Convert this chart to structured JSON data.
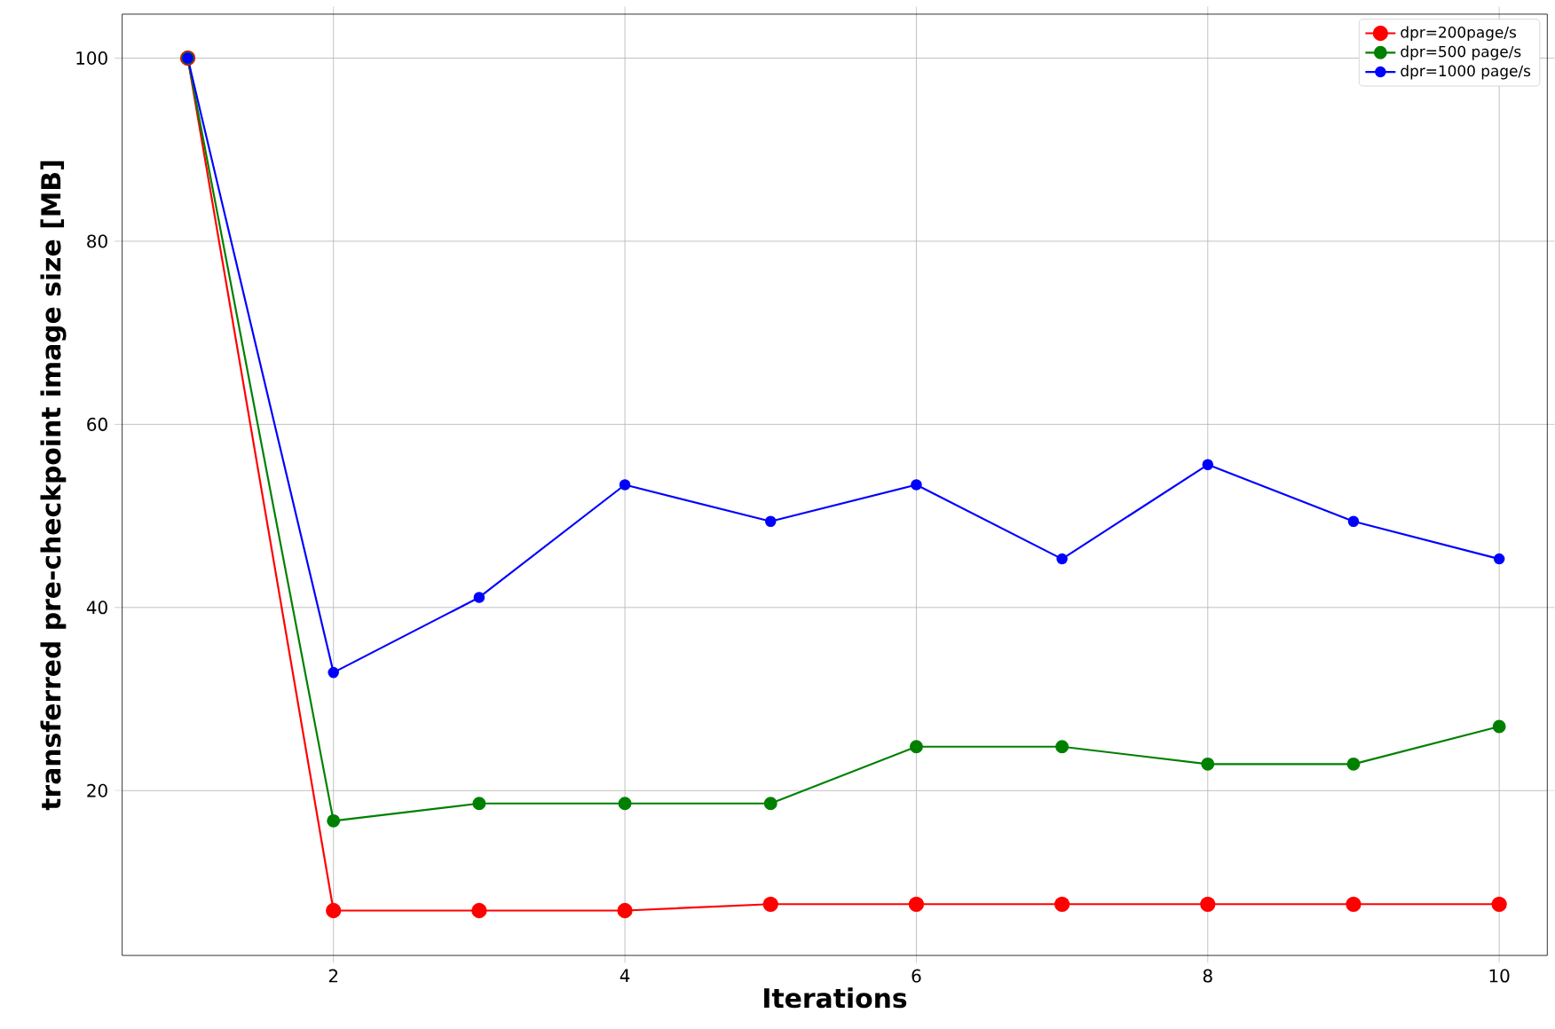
{
  "chart_data": {
    "type": "line",
    "xlabel": "Iterations",
    "ylabel": "transferred pre-checkpoint image size [MB]",
    "x": [
      1,
      2,
      3,
      4,
      5,
      6,
      7,
      8,
      9,
      10
    ],
    "series": [
      {
        "name": "dpr=200page/s",
        "color": "#ff0000",
        "values": [
          100,
          6.9,
          6.9,
          6.9,
          7.6,
          7.6,
          7.6,
          7.6,
          7.6,
          7.6
        ]
      },
      {
        "name": "dpr=500 page/s",
        "color": "#008000",
        "values": [
          100,
          16.7,
          18.6,
          18.6,
          18.6,
          24.8,
          24.8,
          22.9,
          22.9,
          27.0
        ]
      },
      {
        "name": "dpr=1000 page/s",
        "color": "#0000ff",
        "values": [
          100,
          32.9,
          41.1,
          53.4,
          49.4,
          53.4,
          45.3,
          55.6,
          49.4,
          45.3
        ]
      }
    ],
    "xlim": [
      0.55,
      10.33
    ],
    "ylim": [
      2.0,
      104.8
    ],
    "xticks": [
      2,
      4,
      6,
      8,
      10
    ],
    "yticks": [
      20,
      40,
      60,
      80,
      100
    ],
    "grid": true,
    "legend": "top right",
    "marker": "circle",
    "line_style": "solid"
  }
}
